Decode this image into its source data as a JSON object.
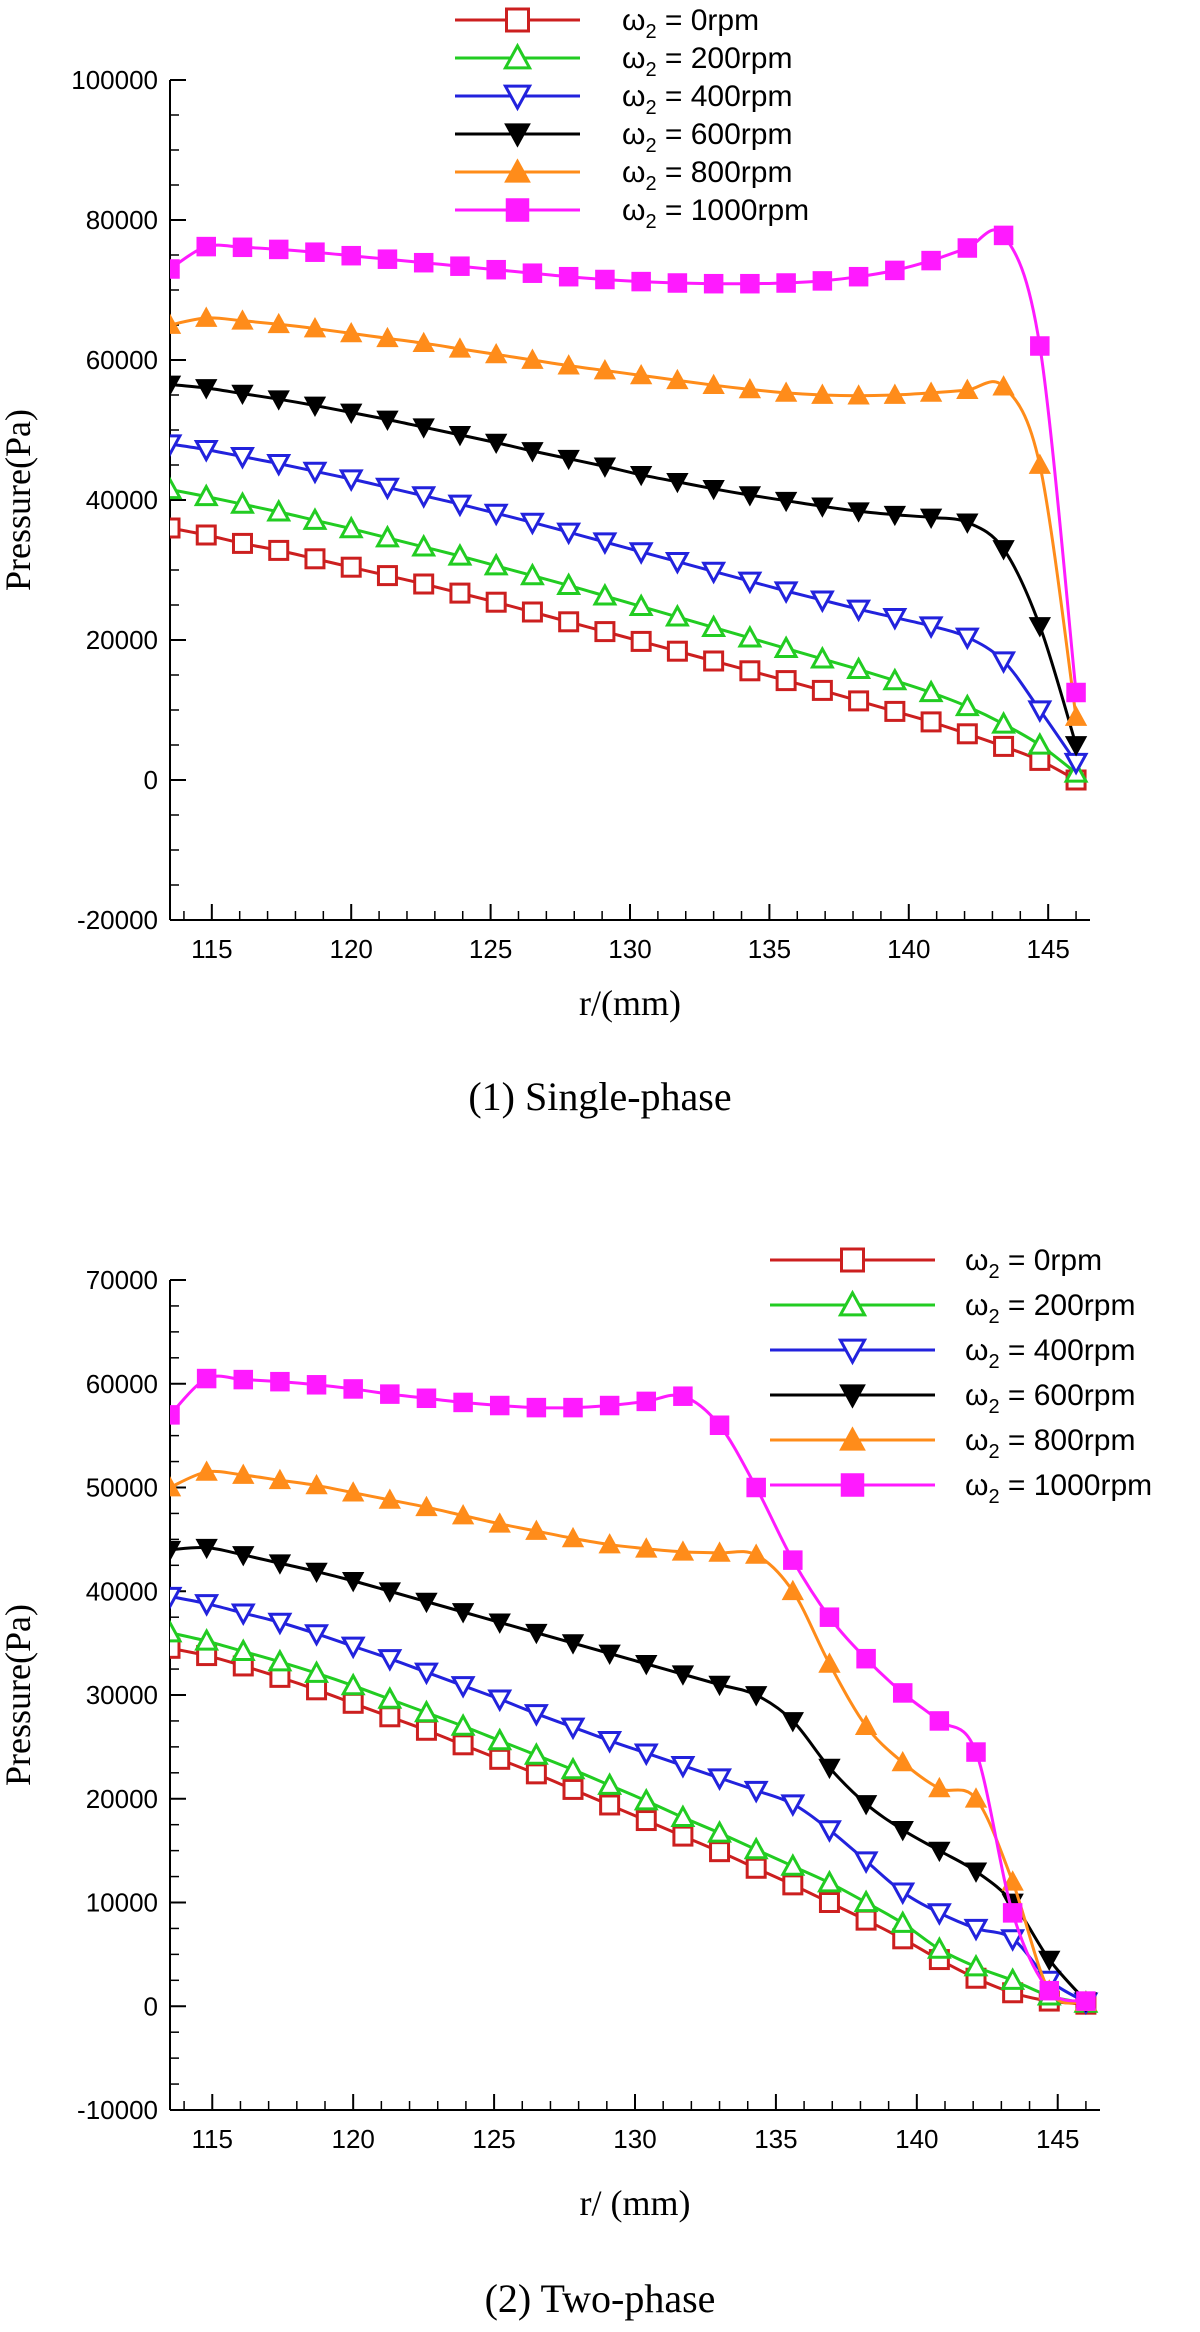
{
  "chart_data": [
    {
      "type": "line",
      "panel": "top",
      "caption": "(1) Single-phase",
      "xlabel": "r/(mm)",
      "ylabel": "Pressure(Pa)",
      "xlim": [
        113.5,
        146.5
      ],
      "ylim": [
        -20000,
        100000
      ],
      "xticks": [
        115,
        120,
        125,
        130,
        135,
        140,
        145
      ],
      "yticks": [
        -20000,
        0,
        20000,
        40000,
        60000,
        80000,
        100000
      ],
      "legend_position": "top-center",
      "x": [
        113.5,
        114.8,
        116.1,
        117.4,
        118.7,
        120.0,
        121.3,
        122.6,
        123.9,
        125.2,
        126.5,
        127.8,
        129.1,
        130.4,
        131.7,
        133.0,
        134.3,
        135.6,
        136.9,
        138.2,
        139.5,
        140.8,
        142.1,
        143.4,
        144.7,
        146.0
      ],
      "series": [
        {
          "name_symbol": "ω",
          "name_sub": "2",
          "name_rest": " = 0rpm",
          "color": "#cc1f1f",
          "marker": "square-open",
          "values": [
            36000,
            35000,
            33800,
            32800,
            31600,
            30400,
            29200,
            28000,
            26700,
            25400,
            24000,
            22600,
            21200,
            19800,
            18400,
            17000,
            15600,
            14200,
            12800,
            11300,
            9800,
            8300,
            6600,
            4800,
            2800,
            0
          ]
        },
        {
          "name_symbol": "ω",
          "name_sub": "2",
          "name_rest": " = 200rpm",
          "color": "#22cc22",
          "marker": "triangle-up-open",
          "values": [
            41500,
            40500,
            39400,
            38300,
            37100,
            35900,
            34600,
            33300,
            32000,
            30600,
            29200,
            27800,
            26300,
            24800,
            23300,
            21800,
            20300,
            18800,
            17300,
            15800,
            14200,
            12500,
            10500,
            8000,
            5000,
            1000
          ]
        },
        {
          "name_symbol": "ω",
          "name_sub": "2",
          "name_rest": " = 400rpm",
          "color": "#2222dd",
          "marker": "triangle-down-open",
          "values": [
            48000,
            47200,
            46200,
            45200,
            44100,
            43000,
            41800,
            40600,
            39400,
            38100,
            36800,
            35400,
            34000,
            32600,
            31200,
            29800,
            28400,
            27000,
            25700,
            24400,
            23200,
            22000,
            20400,
            17000,
            10000,
            2500
          ]
        },
        {
          "name_symbol": "ω",
          "name_sub": "2",
          "name_rest": " = 600rpm",
          "color": "#000000",
          "marker": "triangle-down-filled",
          "values": [
            56500,
            56000,
            55200,
            54400,
            53500,
            52500,
            51500,
            50400,
            49300,
            48200,
            47000,
            45900,
            44800,
            43600,
            42600,
            41600,
            40700,
            39900,
            39100,
            38400,
            37900,
            37500,
            36800,
            33000,
            22000,
            5000
          ]
        },
        {
          "name_symbol": "ω",
          "name_sub": "2",
          "name_rest": " = 800rpm",
          "color": "#ff8c1a",
          "marker": "triangle-up-filled",
          "values": [
            65000,
            66000,
            65600,
            65100,
            64500,
            63800,
            63100,
            62400,
            61600,
            60800,
            60000,
            59200,
            58500,
            57800,
            57100,
            56400,
            55800,
            55300,
            55000,
            54900,
            55000,
            55300,
            55700,
            56200,
            45000,
            9000
          ]
        },
        {
          "name_symbol": "ω",
          "name_sub": "2",
          "name_rest": " = 1000rpm",
          "color": "#ff1aff",
          "marker": "square-filled",
          "values": [
            73000,
            76200,
            76100,
            75800,
            75400,
            74900,
            74400,
            73900,
            73400,
            72900,
            72400,
            71900,
            71500,
            71200,
            71000,
            70900,
            70900,
            71000,
            71300,
            71900,
            72800,
            74200,
            76000,
            77800,
            62000,
            12500
          ]
        }
      ]
    },
    {
      "type": "line",
      "panel": "bottom",
      "caption": "(2) Two-phase",
      "xlabel": "r/ (mm)",
      "ylabel": "Pressure(Pa)",
      "xlim": [
        113.5,
        146.5
      ],
      "ylim": [
        -10000,
        70000
      ],
      "xticks": [
        115,
        120,
        125,
        130,
        135,
        140,
        145
      ],
      "yticks": [
        -10000,
        0,
        10000,
        20000,
        30000,
        40000,
        50000,
        60000,
        70000
      ],
      "legend_position": "top-right",
      "x": [
        113.5,
        114.8,
        116.1,
        117.4,
        118.7,
        120.0,
        121.3,
        122.6,
        123.9,
        125.2,
        126.5,
        127.8,
        129.1,
        130.4,
        131.7,
        133.0,
        134.3,
        135.6,
        136.9,
        138.2,
        139.5,
        140.8,
        142.1,
        143.4,
        144.7,
        146.0
      ],
      "series": [
        {
          "name_symbol": "ω",
          "name_sub": "2",
          "name_rest": " = 0rpm",
          "color": "#cc1f1f",
          "marker": "square-open",
          "values": [
            34500,
            33800,
            32800,
            31700,
            30500,
            29200,
            27900,
            26600,
            25200,
            23800,
            22400,
            20900,
            19400,
            17900,
            16400,
            14900,
            13300,
            11700,
            10000,
            8300,
            6500,
            4500,
            2700,
            1300,
            500,
            200
          ]
        },
        {
          "name_symbol": "ω",
          "name_sub": "2",
          "name_rest": " = 200rpm",
          "color": "#22cc22",
          "marker": "triangle-up-open",
          "values": [
            36000,
            35200,
            34200,
            33200,
            32100,
            30900,
            29600,
            28300,
            27000,
            25600,
            24200,
            22800,
            21300,
            19800,
            18200,
            16700,
            15100,
            13500,
            11900,
            10000,
            8000,
            5500,
            3800,
            2500,
            1000,
            300
          ]
        },
        {
          "name_symbol": "ω",
          "name_sub": "2",
          "name_rest": " = 400rpm",
          "color": "#2222dd",
          "marker": "triangle-down-open",
          "values": [
            39500,
            38800,
            37900,
            37000,
            35900,
            34700,
            33500,
            32200,
            30900,
            29600,
            28200,
            26900,
            25600,
            24400,
            23200,
            22000,
            20800,
            19500,
            17000,
            14000,
            11000,
            9000,
            7500,
            6500,
            2500,
            400
          ]
        },
        {
          "name_symbol": "ω",
          "name_sub": "2",
          "name_rest": " = 600rpm",
          "color": "#000000",
          "marker": "triangle-down-filled",
          "values": [
            44000,
            44200,
            43500,
            42700,
            41900,
            41000,
            40000,
            39000,
            38000,
            37000,
            36000,
            35000,
            34000,
            33000,
            32000,
            31000,
            30000,
            27500,
            23000,
            19500,
            17000,
            15000,
            13000,
            10000,
            4500,
            500
          ]
        },
        {
          "name_symbol": "ω",
          "name_sub": "2",
          "name_rest": " = 800rpm",
          "color": "#ff8c1a",
          "marker": "triangle-up-filled",
          "values": [
            50000,
            51500,
            51200,
            50700,
            50200,
            49500,
            48800,
            48100,
            47300,
            46500,
            45800,
            45100,
            44500,
            44100,
            43800,
            43700,
            43500,
            40000,
            33000,
            27000,
            23500,
            21000,
            20000,
            12000,
            1500,
            400
          ]
        },
        {
          "name_symbol": "ω",
          "name_sub": "2",
          "name_rest": " = 1000rpm",
          "color": "#ff1aff",
          "marker": "square-filled",
          "values": [
            57000,
            60500,
            60400,
            60200,
            59900,
            59500,
            59000,
            58600,
            58200,
            57900,
            57700,
            57700,
            57900,
            58300,
            58800,
            56000,
            50000,
            43000,
            37500,
            33500,
            30200,
            27500,
            24500,
            9000,
            1500,
            500
          ]
        }
      ]
    }
  ]
}
